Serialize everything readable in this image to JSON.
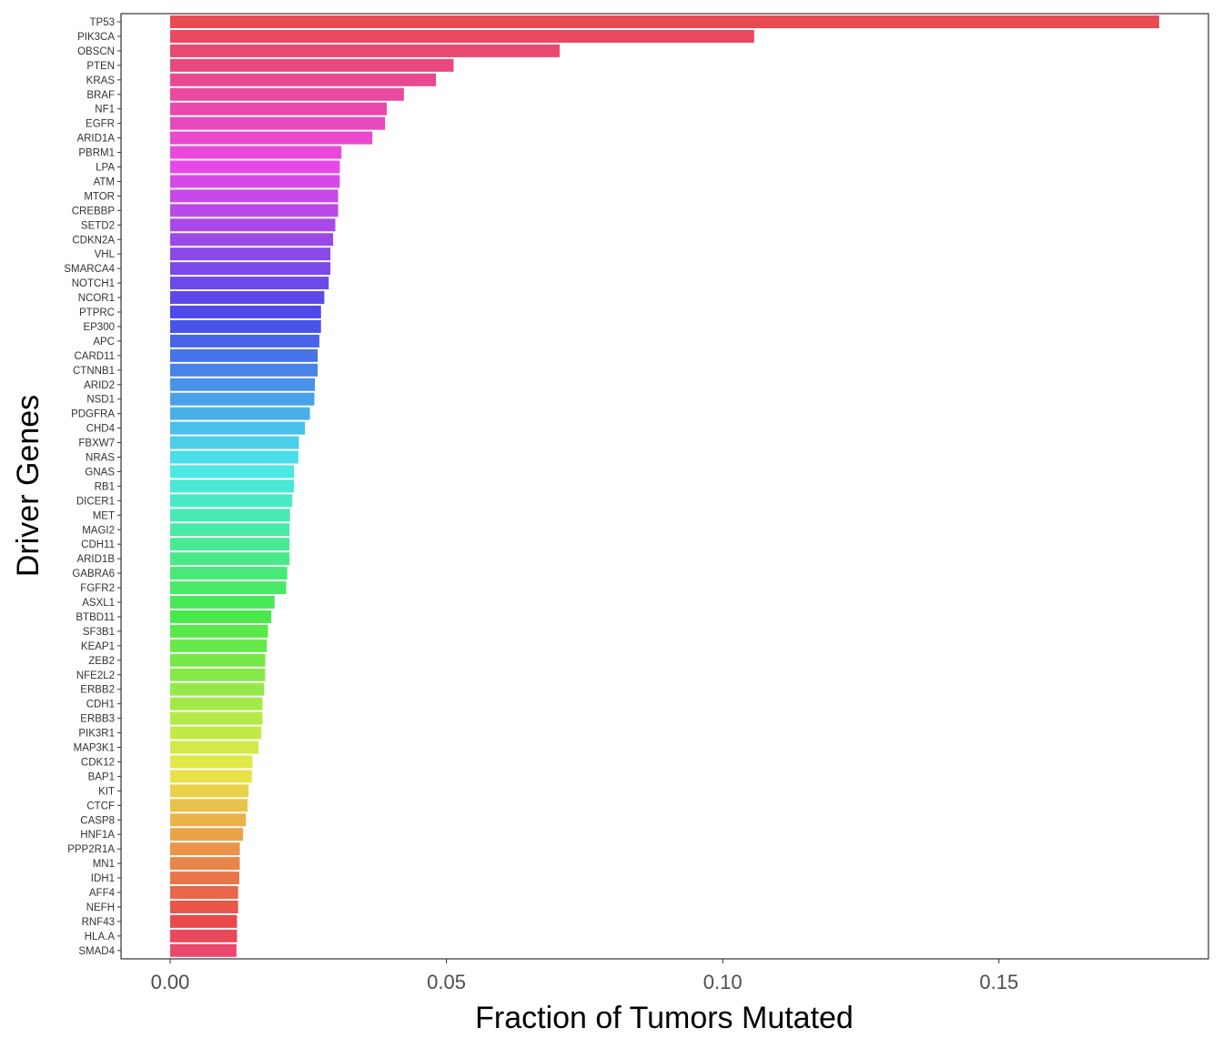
{
  "chart_data": {
    "type": "bar",
    "orientation": "horizontal",
    "xlabel": "Fraction of Tumors Mutated",
    "ylabel": "Driver Genes",
    "xlim": [
      -0.009,
      0.188
    ],
    "x_ticks": [
      0.0,
      0.05,
      0.1,
      0.15
    ],
    "x_tick_labels": [
      "0.00",
      "0.05",
      "0.10",
      "0.15"
    ],
    "grid": false,
    "legend": "none",
    "categories": [
      "TP53",
      "PIK3CA",
      "OBSCN",
      "PTEN",
      "KRAS",
      "BRAF",
      "NF1",
      "EGFR",
      "ARID1A",
      "PBRM1",
      "LPA",
      "ATM",
      "MTOR",
      "CREBBP",
      "SETD2",
      "CDKN2A",
      "VHL",
      "SMARCA4",
      "NOTCH1",
      "NCOR1",
      "PTPRC",
      "EP300",
      "APC",
      "CARD11",
      "CTNNB1",
      "ARID2",
      "NSD1",
      "PDGFRA",
      "CHD4",
      "FBXW7",
      "NRAS",
      "GNAS",
      "RB1",
      "DICER1",
      "MET",
      "MAGI2",
      "CDH11",
      "ARID1B",
      "GABRA6",
      "FGFR2",
      "ASXL1",
      "BTBD11",
      "SF3B1",
      "KEAP1",
      "ZEB2",
      "NFE2L2",
      "ERBB2",
      "CDH1",
      "ERBB3",
      "PIK3R1",
      "MAP3K1",
      "CDK12",
      "BAP1",
      "KIT",
      "CTCF",
      "CASP8",
      "HNF1A",
      "PPP2R1A",
      "MN1",
      "IDH1",
      "AFF4",
      "NEFH",
      "RNF43",
      "HLA.A",
      "SMAD4"
    ],
    "values": [
      0.179,
      0.1057,
      0.0705,
      0.0513,
      0.0481,
      0.0423,
      0.0392,
      0.0389,
      0.0366,
      0.031,
      0.0307,
      0.0307,
      0.0304,
      0.0304,
      0.0299,
      0.0295,
      0.029,
      0.029,
      0.0287,
      0.0279,
      0.0273,
      0.0273,
      0.027,
      0.0267,
      0.0267,
      0.0262,
      0.0261,
      0.0253,
      0.0244,
      0.0233,
      0.0232,
      0.0224,
      0.0224,
      0.0221,
      0.0217,
      0.0216,
      0.0216,
      0.0216,
      0.0212,
      0.021,
      0.0189,
      0.0183,
      0.0177,
      0.0175,
      0.0172,
      0.0172,
      0.017,
      0.0167,
      0.0167,
      0.0165,
      0.016,
      0.0149,
      0.0148,
      0.0142,
      0.014,
      0.0137,
      0.0132,
      0.0126,
      0.0126,
      0.0125,
      0.0123,
      0.0123,
      0.0121,
      0.0121,
      0.012
    ]
  }
}
